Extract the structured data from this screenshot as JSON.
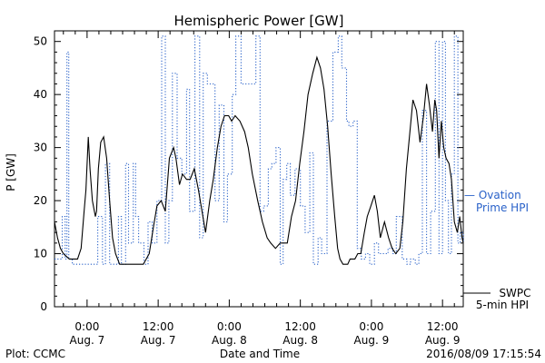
{
  "chart_data": {
    "type": "line",
    "title": "Hemispheric Power [GW]",
    "ylabel": "P [GW]",
    "xlabel": "Date and Time",
    "ylim": [
      0,
      52
    ],
    "xlim_hours": [
      -5.5,
      63.5
    ],
    "yticks": [
      0,
      10,
      20,
      30,
      40,
      50
    ],
    "xticks": [
      {
        "hour": 0,
        "time": "0:00",
        "date": "Aug. 7"
      },
      {
        "hour": 12,
        "time": "12:00",
        "date": "Aug. 7"
      },
      {
        "hour": 24,
        "time": "0:00",
        "date": "Aug. 8"
      },
      {
        "hour": 36,
        "time": "12:00",
        "date": "Aug. 8"
      },
      {
        "hour": 48,
        "time": "0:00",
        "date": "Aug. 9"
      },
      {
        "hour": 60,
        "time": "12:00",
        "date": "Aug. 9"
      }
    ],
    "grid": false,
    "legend_position": "right",
    "series": [
      {
        "name": "Ovation Prime HPI",
        "legend_line1": "— Ovation",
        "legend_line2": "Prime HPI",
        "color": "#2a62c9",
        "style": "dotted-step",
        "x": [
          -5.5,
          -4.7,
          -4.2,
          -3.7,
          -3.4,
          -3.1,
          -2.5,
          -2.2,
          1.3,
          1.8,
          2.6,
          3.1,
          3.8,
          4.4,
          4.9,
          5.3,
          5.8,
          6.5,
          7.0,
          7.8,
          8.2,
          8.7,
          9.6,
          10.3,
          11.0,
          11.8,
          12.6,
          13.2,
          13.8,
          14.4,
          15.2,
          16.0,
          16.8,
          17.3,
          18.2,
          19.0,
          19.6,
          20.3,
          20.9,
          21.6,
          22.3,
          23.1,
          23.7,
          24.5,
          25.1,
          26.0,
          28.5,
          29.2,
          29.8,
          30.6,
          31.2,
          31.9,
          32.6,
          33.1,
          33.7,
          34.3,
          35.1,
          36.0,
          36.8,
          37.6,
          38.2,
          39.0,
          39.6,
          40.5,
          41.5,
          42.4,
          43.0,
          43.8,
          44.2,
          44.9,
          45.6,
          46.3,
          47.0,
          47.7,
          48.5,
          49.2,
          50.0,
          50.8,
          51.6,
          52.2,
          53.2,
          54.0,
          54.6,
          55.4,
          56.0,
          56.6,
          57.3,
          58.0,
          58.8,
          59.4,
          60.0,
          60.5,
          61.0,
          61.5,
          62.0,
          62.6,
          63.0,
          63.5
        ],
        "y": [
          9,
          9,
          17,
          9,
          48,
          9,
          8,
          8,
          8,
          17,
          8,
          27,
          8,
          8,
          8,
          17,
          8,
          27,
          12,
          27,
          17,
          12,
          8,
          16,
          12,
          20,
          51,
          12,
          20,
          44,
          28,
          25,
          41,
          18,
          51,
          13,
          44,
          42,
          42,
          20,
          38,
          16,
          25,
          40,
          51,
          42,
          51,
          18,
          19,
          26,
          27,
          30,
          8,
          24,
          27,
          21,
          26,
          19,
          14,
          29,
          8,
          13,
          10,
          35,
          48,
          51,
          45,
          35,
          34,
          35,
          11,
          9,
          10,
          8,
          12,
          10,
          10,
          11,
          10,
          17,
          9,
          8,
          9,
          8,
          10,
          37,
          10,
          18,
          50,
          10,
          50,
          20,
          10,
          25,
          51,
          12,
          14,
          12
        ],
        "note": "x values in hours relative to 2016-08-07 00:00"
      },
      {
        "name": "SWPC 5-min HPI",
        "legend_line1": "SWPC",
        "legend_line2": "5-min HPI",
        "color": "#000000",
        "style": "solid",
        "x": [
          -5.5,
          -5.0,
          -4.5,
          -4.0,
          -3.0,
          -2.0,
          -1.6,
          -1.0,
          -0.5,
          -0.2,
          0.2,
          0.5,
          0.9,
          1.4,
          1.6,
          1.9,
          2.3,
          2.8,
          3.3,
          3.8,
          4.3,
          4.8,
          5.5,
          6.5,
          7.5,
          8.5,
          9.5,
          10.5,
          11.2,
          11.8,
          12.5,
          13.2,
          13.9,
          14.6,
          15.0,
          15.6,
          16.1,
          16.8,
          17.4,
          18.1,
          18.8,
          19.4,
          20.0,
          20.7,
          21.3,
          22.0,
          22.6,
          23.2,
          23.9,
          24.4,
          25.0,
          25.8,
          26.6,
          27.2,
          27.9,
          28.8,
          29.6,
          30.4,
          31.0,
          31.8,
          32.6,
          33.2,
          33.8,
          34.5,
          35.2,
          35.9,
          36.6,
          37.3,
          38.1,
          38.8,
          39.4,
          40.0,
          40.6,
          41.2,
          41.8,
          42.3,
          42.7,
          43.2,
          43.6,
          44.0,
          44.4,
          44.8,
          45.2,
          45.7,
          46.2,
          46.8,
          47.3,
          47.9,
          48.5,
          49.0,
          49.5,
          50.2,
          50.9,
          51.5,
          52.1,
          52.8,
          53.3,
          53.9,
          54.5,
          55.0,
          55.6,
          56.2,
          56.8,
          57.3,
          57.8,
          58.3,
          58.7,
          59.0,
          59.4,
          59.8,
          60.2,
          60.6,
          61.1,
          61.5,
          62.0,
          62.5,
          62.9,
          63.3,
          63.5
        ],
        "y": [
          16,
          13,
          11,
          10,
          9,
          9,
          9,
          11,
          18,
          22,
          32,
          26,
          20,
          17,
          18,
          26,
          31,
          32,
          28,
          20,
          13,
          10,
          8,
          8,
          8,
          8,
          8,
          10,
          15,
          19,
          20,
          18,
          28,
          30,
          28,
          23,
          25,
          24,
          24,
          26,
          22,
          18,
          14,
          20,
          24,
          30,
          34,
          36,
          36,
          35,
          36,
          35,
          33,
          30,
          25,
          20,
          16,
          13,
          12,
          11,
          12,
          12,
          12,
          17,
          20,
          27,
          33,
          40,
          44,
          47,
          45,
          41,
          34,
          25,
          17,
          11,
          9,
          8,
          8,
          8,
          9,
          9,
          9,
          10,
          10,
          14,
          17,
          19,
          21,
          18,
          13,
          16,
          13,
          11,
          10,
          11,
          16,
          26,
          33,
          39,
          37,
          31,
          36,
          42,
          38,
          33,
          39,
          37,
          28,
          35,
          30,
          28,
          27,
          24,
          16,
          14,
          17,
          13,
          12
        ]
      }
    ]
  },
  "footer": {
    "left": "Plot: CCMC",
    "timestamp": "2016/08/09 17:15:54"
  }
}
